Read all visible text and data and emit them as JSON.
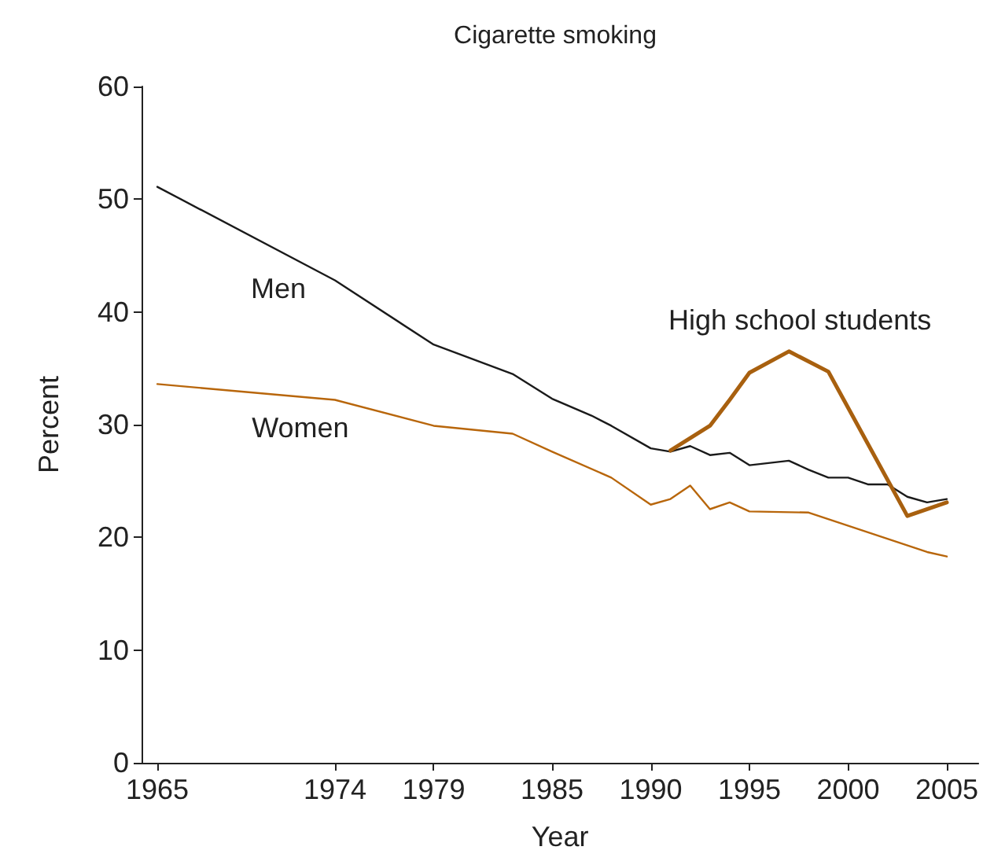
{
  "chart_data": {
    "type": "line",
    "title": "Cigarette smoking",
    "xlabel": "Year",
    "ylabel": "Percent",
    "xlim": [
      1964.2,
      2006.6
    ],
    "xticks": [
      1965,
      1974,
      1979,
      1985,
      1990,
      1995,
      2000,
      2005
    ],
    "ylim": [
      0,
      60
    ],
    "yticks": [
      0,
      10,
      20,
      30,
      40,
      50,
      60
    ],
    "grid": false,
    "legend": false,
    "marker": "none",
    "line_style": "solid",
    "series": [
      {
        "name": "Men",
        "color": "#1a1a1a",
        "x": [
          1965,
          1974,
          1979,
          1983,
          1985,
          1987,
          1988,
          1990,
          1991,
          1992,
          1993,
          1994,
          1995,
          1997,
          1998,
          1999,
          2000,
          2001,
          2002,
          2003,
          2004,
          2005
        ],
        "values": [
          51.1,
          42.8,
          37.1,
          34.5,
          32.3,
          30.8,
          29.9,
          27.9,
          27.6,
          28.1,
          27.3,
          27.5,
          26.4,
          26.8,
          26.0,
          25.3,
          25.3,
          24.7,
          24.7,
          23.6,
          23.1,
          23.4
        ]
      },
      {
        "name": "Women",
        "color": "#b8660b",
        "x": [
          1965,
          1974,
          1979,
          1983,
          1985,
          1988,
          1990,
          1991,
          1992,
          1993,
          1994,
          1995,
          1998,
          2004,
          2005
        ],
        "values": [
          33.6,
          32.2,
          29.9,
          29.2,
          27.6,
          25.3,
          22.9,
          23.4,
          24.6,
          22.5,
          23.1,
          22.3,
          22.2,
          18.7,
          18.3
        ]
      },
      {
        "name": "High school students",
        "color": "#a8600f",
        "x": [
          1991,
          1993,
          1994,
          1995,
          1997,
          1999,
          2003,
          2005
        ],
        "values": [
          27.7,
          29.9,
          32.2,
          34.6,
          36.5,
          34.7,
          21.9,
          23.1
        ]
      }
    ]
  }
}
